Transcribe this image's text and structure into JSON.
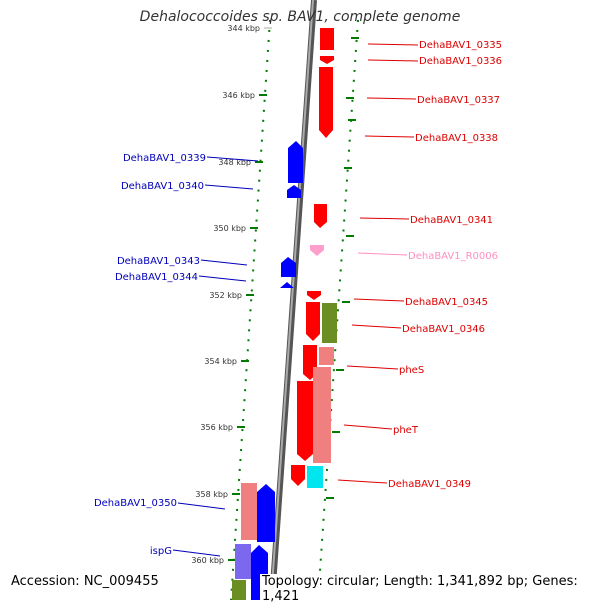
{
  "header": {
    "title": "Dehalococcoides sp. BAV1, complete genome"
  },
  "footer": {
    "accession": "Accession: NC_009455",
    "summary": "Topology: circular; Length: 1,341,892 bp; Genes: 1,421"
  },
  "colors": {
    "forward_cds": "#ff0000",
    "forward_cds_light": "#f08080",
    "reverse_cds": "#0000ff",
    "rna": "#ff9ecb",
    "olive": "#6b8e23",
    "cyan": "#00e5ee",
    "purple": "#7b68ee",
    "tick": "#007a00",
    "backbone": "#888888"
  },
  "ticks": [
    {
      "label": "344 kbp"
    },
    {
      "label": "346 kbp"
    },
    {
      "label": "348 kbp"
    },
    {
      "label": "350 kbp"
    },
    {
      "label": "352 kbp"
    },
    {
      "label": "354 kbp"
    },
    {
      "label": "356 kbp"
    },
    {
      "label": "358 kbp"
    },
    {
      "label": "360 kbp"
    }
  ],
  "forward_labels": [
    {
      "text": "DehaBAV1_0335",
      "color": "#dd0000"
    },
    {
      "text": "DehaBAV1_0336",
      "color": "#dd0000"
    },
    {
      "text": "DehaBAV1_0337",
      "color": "#dd0000"
    },
    {
      "text": "DehaBAV1_0338",
      "color": "#dd0000"
    },
    {
      "text": "DehaBAV1_0341",
      "color": "#dd0000"
    },
    {
      "text": "DehaBAV1_R0006",
      "color": "#ff8fc0"
    },
    {
      "text": "DehaBAV1_0345",
      "color": "#dd0000"
    },
    {
      "text": "DehaBAV1_0346",
      "color": "#dd0000"
    },
    {
      "text": "pheS",
      "color": "#dd0000"
    },
    {
      "text": "pheT",
      "color": "#dd0000"
    },
    {
      "text": "DehaBAV1_0349",
      "color": "#dd0000"
    }
  ],
  "reverse_labels": [
    {
      "text": "DehaBAV1_0339",
      "color": "#0000bb"
    },
    {
      "text": "DehaBAV1_0340",
      "color": "#0000bb"
    },
    {
      "text": "DehaBAV1_0343",
      "color": "#0000bb"
    },
    {
      "text": "DehaBAV1_0344",
      "color": "#0000bb"
    },
    {
      "text": "DehaBAV1_0350",
      "color": "#0000bb"
    },
    {
      "text": "ispG",
      "color": "#0000bb"
    }
  ]
}
